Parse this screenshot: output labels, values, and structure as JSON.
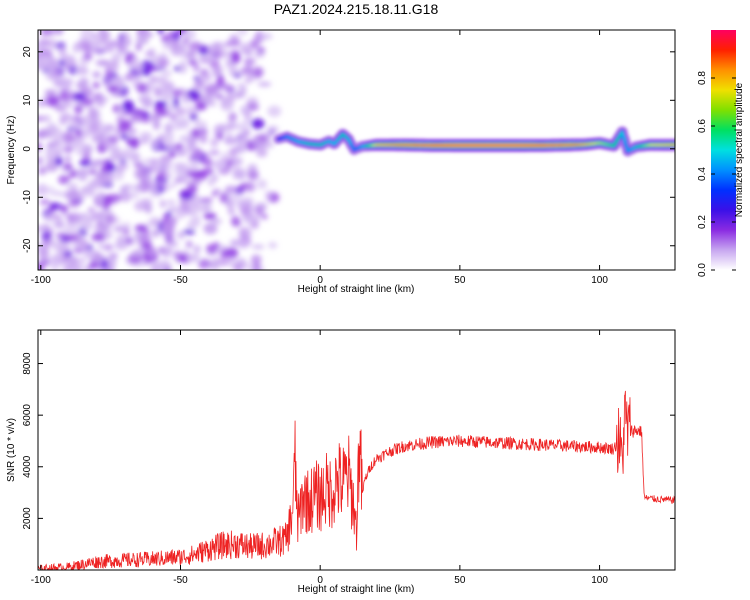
{
  "figure": {
    "title": "PAZ1.2024.215.18.11.G18"
  },
  "chart_data": [
    {
      "type": "heatmap",
      "title": "PAZ1.2024.215.18.11.G18",
      "xlabel": "Height of straight line (km)",
      "ylabel": "Frequency (Hz)",
      "xlim": [
        -101,
        127
      ],
      "ylim": [
        -25,
        24.5
      ],
      "xticks": [
        -100,
        -50,
        0,
        50,
        100
      ],
      "yticks": [
        -20,
        -10,
        0,
        10,
        20
      ],
      "colorbar": {
        "label": "Normalized spectral amplitude",
        "range": [
          0,
          1
        ],
        "ticks": [
          0.0,
          0.2,
          0.4,
          0.6,
          0.8
        ],
        "colormap": [
          "#ffffff",
          "#c7a6f0",
          "#8a2be2",
          "#3a10e8",
          "#0030ff",
          "#0090ff",
          "#00e0e0",
          "#00e060",
          "#80e000",
          "#f0e000",
          "#ff9000",
          "#ff2000",
          "#ff0060"
        ]
      },
      "noise_region": {
        "x_range": [
          -101,
          -15
        ],
        "description_level": 0.12
      },
      "ridge": {
        "x": [
          -15,
          -12,
          -8,
          -4,
          0,
          3,
          5,
          8,
          10,
          12,
          15,
          20,
          30,
          40,
          50,
          60,
          70,
          80,
          90,
          95,
          100,
          105,
          108,
          110,
          113,
          118,
          127
        ],
        "frequency": [
          2,
          2.5,
          1.5,
          1.0,
          0.8,
          1.6,
          1.0,
          3.0,
          2.0,
          -0.2,
          0.5,
          0.8,
          0.8,
          0.7,
          0.7,
          0.7,
          0.7,
          0.7,
          0.8,
          0.9,
          1.2,
          0.6,
          3.5,
          -0.5,
          0.4,
          0.8,
          0.8
        ],
        "amplitude": [
          0.35,
          0.45,
          0.5,
          0.55,
          0.55,
          0.5,
          0.5,
          0.55,
          0.5,
          0.4,
          0.5,
          0.8,
          0.9,
          0.95,
          0.98,
          0.98,
          0.98,
          0.95,
          0.9,
          0.8,
          0.7,
          0.6,
          0.5,
          0.45,
          0.55,
          0.75,
          0.8
        ]
      }
    },
    {
      "type": "line",
      "xlabel": "Height of straight line (km)",
      "ylabel": "SNR (10 * v/v)",
      "xlim": [
        -101,
        127
      ],
      "ylim": [
        0,
        9300
      ],
      "xticks": [
        -100,
        -50,
        0,
        50,
        100
      ],
      "yticks": [
        2000,
        4000,
        6000,
        8000
      ],
      "color": "#ee2222",
      "series": [
        {
          "x": [
            -101,
            -90,
            -80,
            -70,
            -60,
            -50,
            -45,
            -40,
            -35,
            -30,
            -25,
            -20,
            -15,
            -12,
            -10,
            -9,
            -8,
            -6,
            -4,
            -2,
            0,
            2,
            4,
            6,
            8,
            10,
            12,
            13,
            14,
            15,
            16,
            18,
            20,
            25,
            30,
            40,
            50,
            60,
            70,
            80,
            90,
            100,
            105,
            107,
            108,
            109,
            110,
            112,
            115,
            116,
            120,
            127
          ],
          "y": [
            50,
            120,
            320,
            380,
            420,
            500,
            600,
            800,
            950,
            1000,
            900,
            950,
            1100,
            1200,
            2200,
            4100,
            1800,
            2900,
            2600,
            2900,
            2800,
            3100,
            3000,
            3500,
            3300,
            3700,
            2500,
            1500,
            5200,
            2900,
            3500,
            4000,
            4300,
            4600,
            4800,
            4950,
            5000,
            4950,
            4900,
            4850,
            4800,
            4750,
            4700,
            5000,
            4200,
            6000,
            5400,
            5400,
            5400,
            2800,
            2750,
            2700
          ]
        }
      ]
    }
  ]
}
